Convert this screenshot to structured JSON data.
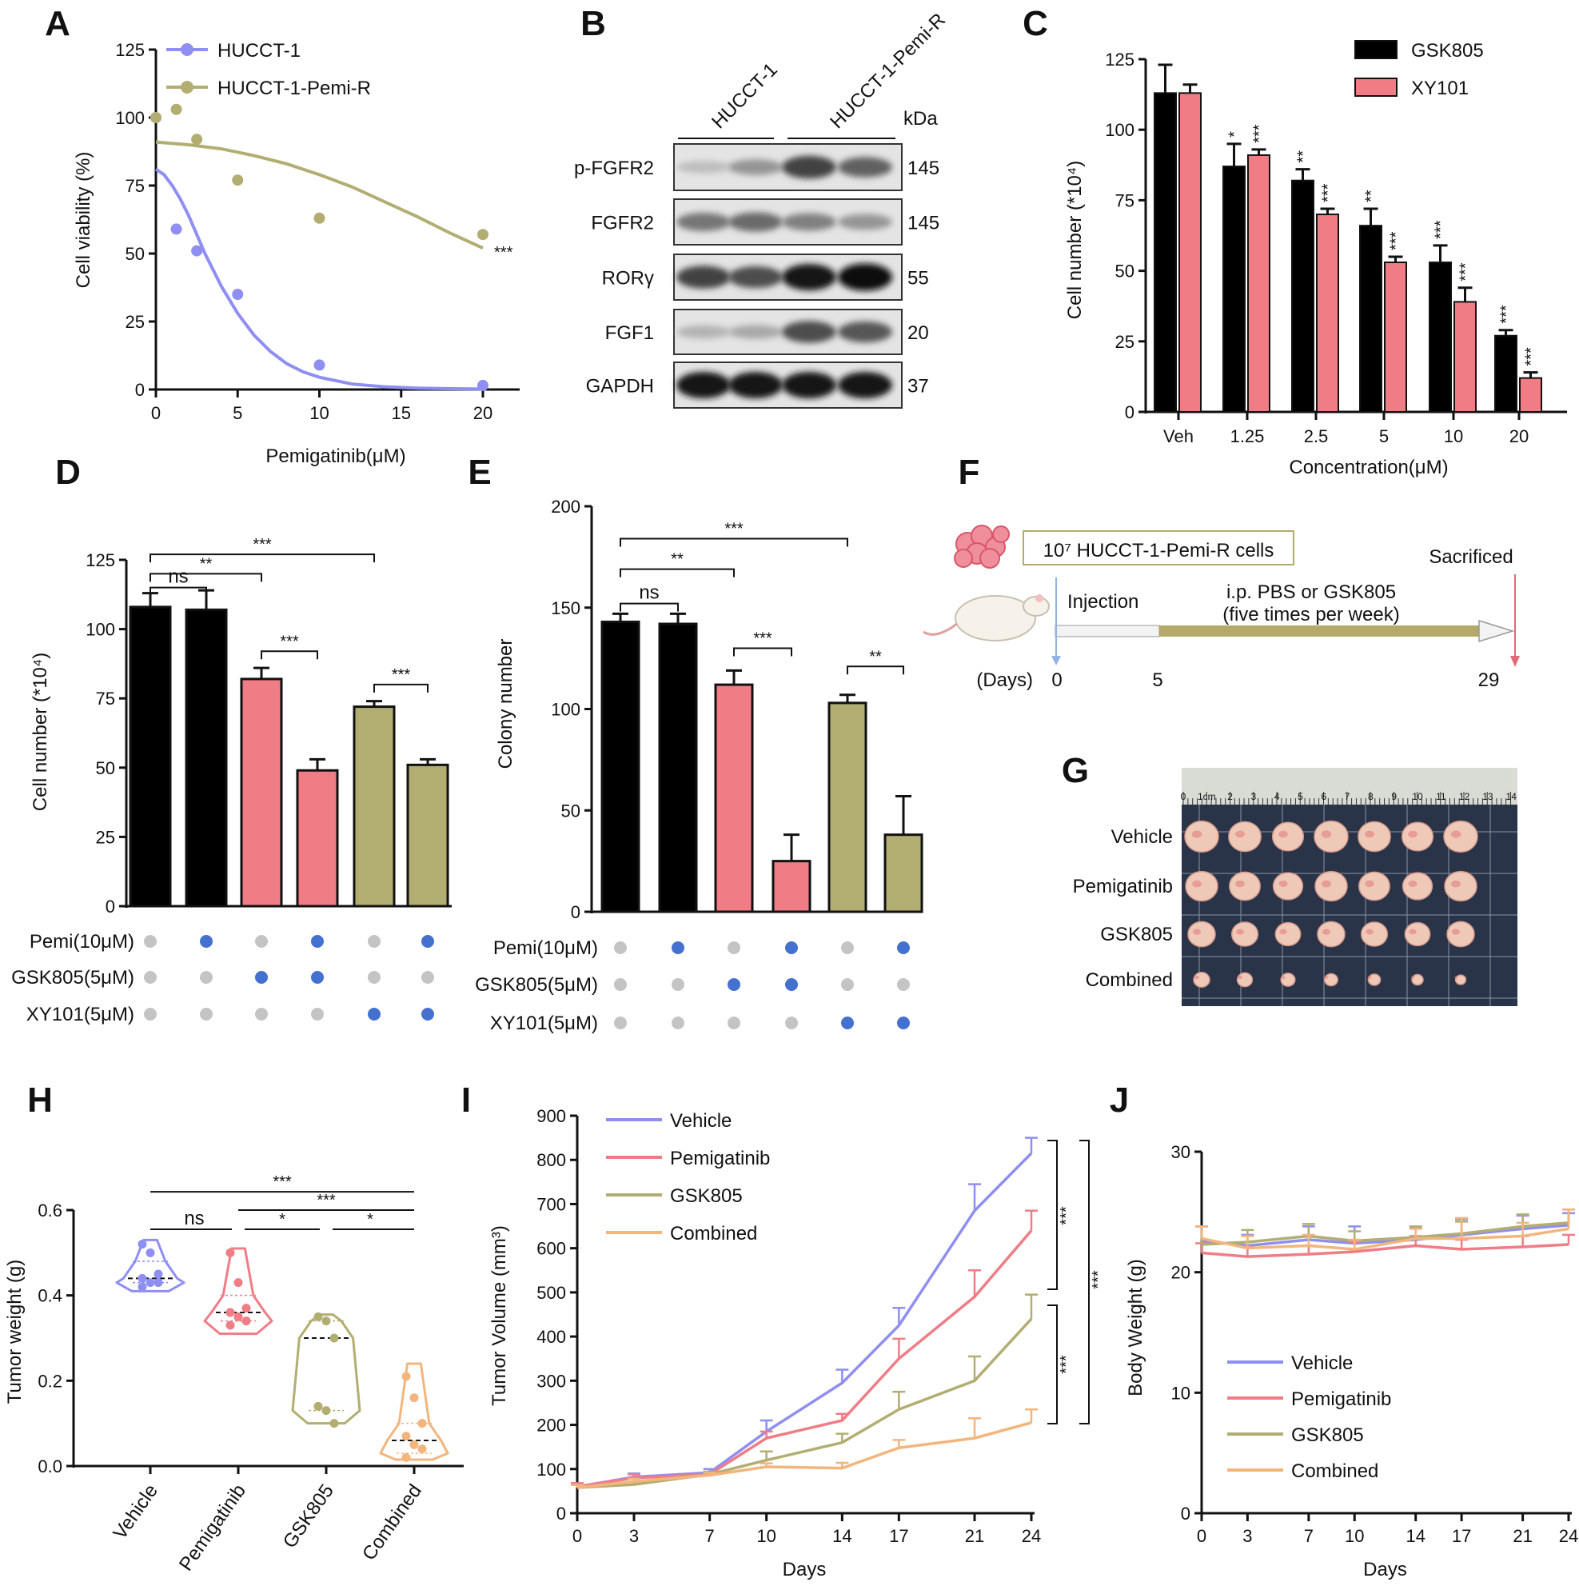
{
  "colors": {
    "purple": "#8f8ef2",
    "olive": "#b2ae72",
    "pink": "#f07c85",
    "orange": "#f3b57c",
    "black": "#000000",
    "blue": "#4470cf",
    "gray": "#c4c4c4",
    "arrow_line": "#b3aa6a",
    "inject": "#8fb3e6",
    "sacrifice": "#e06b76"
  },
  "panel_labels": [
    "A",
    "B",
    "C",
    "D",
    "E",
    "F",
    "G",
    "H",
    "I",
    "J"
  ],
  "chart_data": [
    {
      "panel": "A",
      "type": "scatter",
      "xlabel": "Pemigatinib(μM)",
      "ylabel": "Cell viability (%)",
      "xlim": [
        0,
        22
      ],
      "ylim": [
        0,
        125
      ],
      "xticks": [
        0,
        5,
        10,
        15,
        20
      ],
      "yticks": [
        0,
        25,
        50,
        75,
        100,
        125
      ],
      "series": [
        {
          "name": "HUCCT-1",
          "color": "purple",
          "points": [
            [
              0,
              100
            ],
            [
              1.25,
              59
            ],
            [
              2.5,
              51
            ],
            [
              5,
              35
            ],
            [
              10,
              9
            ],
            [
              20,
              1.5
            ]
          ],
          "fit": [
            [
              0,
              81
            ],
            [
              0.5,
              79
            ],
            [
              1,
              75
            ],
            [
              1.5,
              70
            ],
            [
              2,
              64
            ],
            [
              2.5,
              57
            ],
            [
              3,
              50
            ],
            [
              3.5,
              44
            ],
            [
              4,
              38
            ],
            [
              4.5,
              33
            ],
            [
              5,
              28
            ],
            [
              6,
              20
            ],
            [
              7,
              14
            ],
            [
              8,
              9.5
            ],
            [
              9,
              6.5
            ],
            [
              10,
              4.5
            ],
            [
              12,
              2
            ],
            [
              14,
              1
            ],
            [
              16,
              0.5
            ],
            [
              18,
              0.3
            ],
            [
              20,
              0.2
            ]
          ]
        },
        {
          "name": "HUCCT-1-Pemi-R",
          "color": "olive",
          "points": [
            [
              0,
              100
            ],
            [
              1.25,
              103
            ],
            [
              2.5,
              92
            ],
            [
              5,
              77
            ],
            [
              10,
              63
            ],
            [
              20,
              57
            ]
          ],
          "fit": [
            [
              0,
              91
            ],
            [
              2,
              90
            ],
            [
              4,
              88.5
            ],
            [
              6,
              86
            ],
            [
              8,
              83
            ],
            [
              10,
              79
            ],
            [
              12,
              74.5
            ],
            [
              14,
              69
            ],
            [
              16,
              63.5
            ],
            [
              18,
              57.5
            ],
            [
              20,
              52
            ]
          ]
        }
      ],
      "annotation": "***"
    },
    {
      "panel": "B",
      "type": "blot",
      "lanes": [
        "HUCCT-1",
        "HUCCT-1-Pemi-R"
      ],
      "unit": "kDa",
      "bands": [
        {
          "name": "p-FGFR2",
          "kda": "145",
          "intensity": [
            0.15,
            0.35,
            0.75,
            0.6
          ]
        },
        {
          "name": "FGFR2",
          "kda": "145",
          "intensity": [
            0.5,
            0.55,
            0.45,
            0.35
          ]
        },
        {
          "name": "RORγ",
          "kda": "55",
          "intensity": [
            0.75,
            0.7,
            0.95,
            1.0
          ]
        },
        {
          "name": "FGF1",
          "kda": "20",
          "intensity": [
            0.2,
            0.25,
            0.7,
            0.65
          ]
        },
        {
          "name": "GAPDH",
          "kda": "37",
          "intensity": [
            0.95,
            0.95,
            0.95,
            0.95
          ]
        }
      ]
    },
    {
      "panel": "C",
      "type": "bar",
      "categories": [
        "Veh",
        "1.25",
        "2.5",
        "5",
        "10",
        "20"
      ],
      "xlabel": "Concentration(μM)",
      "ylabel": "Cell number (*10⁴)",
      "ylim": [
        0,
        125
      ],
      "yticks": [
        0,
        25,
        50,
        75,
        100,
        125
      ],
      "series": [
        {
          "name": "GSK805",
          "color": "black",
          "values": [
            113,
            87,
            82,
            66,
            53,
            27
          ],
          "errors": [
            10,
            8,
            4,
            6,
            6,
            2
          ],
          "sig": [
            "",
            "*",
            "**",
            "**",
            "***",
            "***"
          ]
        },
        {
          "name": "XY101",
          "color": "pink",
          "values": [
            113,
            91,
            70,
            53,
            39,
            12
          ],
          "errors": [
            3,
            2,
            2,
            2,
            5,
            2
          ],
          "sig": [
            "",
            "***",
            "***",
            "***",
            "***",
            "***"
          ]
        }
      ]
    },
    {
      "panel": "D",
      "type": "bar",
      "ylabel": "Cell number (*10⁴)",
      "ylim": [
        0,
        125
      ],
      "yticks": [
        0,
        25,
        50,
        75,
        100,
        125
      ],
      "bars": [
        {
          "value": 108,
          "error": 5,
          "color": "black"
        },
        {
          "value": 107,
          "error": 7,
          "color": "black"
        },
        {
          "value": 82,
          "error": 4,
          "color": "pink"
        },
        {
          "value": 49,
          "error": 4,
          "color": "pink"
        },
        {
          "value": 72,
          "error": 2,
          "color": "olive"
        },
        {
          "value": 51,
          "error": 2,
          "color": "olive"
        }
      ],
      "brackets": [
        {
          "from": 0,
          "to": 1,
          "y": 115,
          "label": "ns"
        },
        {
          "from": 0,
          "to": 2,
          "y": 120,
          "label": "**"
        },
        {
          "from": 0,
          "to": 4,
          "y": 127,
          "label": "***"
        },
        {
          "from": 2,
          "to": 3,
          "y": 92,
          "label": "***"
        },
        {
          "from": 4,
          "to": 5,
          "y": 80,
          "label": "***"
        }
      ],
      "matrix": {
        "rows": [
          "Pemi(10μM)",
          "GSK805(5μM)",
          "XY101(5μM)"
        ],
        "on": [
          [
            0,
            1,
            0,
            1,
            0,
            1
          ],
          [
            0,
            0,
            1,
            1,
            0,
            0
          ],
          [
            0,
            0,
            0,
            0,
            1,
            1
          ]
        ]
      }
    },
    {
      "panel": "E",
      "type": "bar",
      "ylabel": "Colony number",
      "ylim": [
        0,
        200
      ],
      "yticks": [
        0,
        50,
        100,
        150,
        200
      ],
      "bars": [
        {
          "value": 143,
          "error": 4,
          "color": "black"
        },
        {
          "value": 142,
          "error": 5,
          "color": "black"
        },
        {
          "value": 112,
          "error": 7,
          "color": "pink"
        },
        {
          "value": 25,
          "error": 13,
          "color": "pink"
        },
        {
          "value": 103,
          "error": 4,
          "color": "olive"
        },
        {
          "value": 38,
          "error": 19,
          "color": "olive"
        }
      ],
      "brackets": [
        {
          "from": 0,
          "to": 1,
          "y": 152,
          "label": "ns"
        },
        {
          "from": 0,
          "to": 2,
          "y": 169,
          "label": "**"
        },
        {
          "from": 0,
          "to": 4,
          "y": 184,
          "label": "***"
        },
        {
          "from": 2,
          "to": 3,
          "y": 130,
          "label": "***"
        },
        {
          "from": 4,
          "to": 5,
          "y": 121,
          "label": "**"
        }
      ],
      "matrix": {
        "rows": [
          "Pemi(10μM)",
          "GSK805(5μM)",
          "XY101(5μM)"
        ],
        "on": [
          [
            0,
            1,
            0,
            1,
            0,
            1
          ],
          [
            0,
            0,
            1,
            1,
            0,
            0
          ],
          [
            0,
            0,
            0,
            0,
            1,
            1
          ]
        ]
      }
    },
    {
      "panel": "H",
      "type": "violin",
      "ylabel": "Tumor weight (g)",
      "ylim": [
        0,
        0.6
      ],
      "yticks": [
        0.0,
        0.2,
        0.4,
        0.6
      ],
      "yticklabels": [
        "0.0",
        "0.2",
        "0.4",
        "0.6"
      ],
      "groups": [
        {
          "name": "Vehicle",
          "color": "purple",
          "points": [
            0.52,
            0.5,
            0.45,
            0.44,
            0.43,
            0.43,
            0.42
          ],
          "median": 0.44,
          "q1": 0.43,
          "q3": 0.48,
          "min": 0.41,
          "max": 0.53
        },
        {
          "name": "Pemigatinib",
          "color": "pink",
          "points": [
            0.5,
            0.43,
            0.37,
            0.36,
            0.35,
            0.34,
            0.33
          ],
          "median": 0.36,
          "q1": 0.34,
          "q3": 0.4,
          "min": 0.31,
          "max": 0.51
        },
        {
          "name": "GSK805",
          "color": "olive",
          "points": [
            0.35,
            0.34,
            0.3,
            0.14,
            0.13,
            0.1
          ],
          "median": 0.3,
          "q1": 0.13,
          "q3": 0.34,
          "min": 0.1,
          "max": 0.355
        },
        {
          "name": "Combined",
          "color": "orange",
          "points": [
            0.21,
            0.16,
            0.1,
            0.07,
            0.05,
            0.04,
            0.02
          ],
          "median": 0.06,
          "q1": 0.03,
          "q3": 0.1,
          "min": 0.015,
          "max": 0.24
        }
      ],
      "brackets": [
        {
          "from": 0,
          "to": 1,
          "y": 0.555,
          "label": "ns"
        },
        {
          "from": 1,
          "to": 2,
          "y": 0.555,
          "label": "*"
        },
        {
          "from": 2,
          "to": 3,
          "y": 0.555,
          "label": "*"
        },
        {
          "from": 1,
          "to": 3,
          "y": 0.6,
          "label": "***"
        },
        {
          "from": 0,
          "to": 3,
          "y": 0.643,
          "label": "***"
        }
      ]
    },
    {
      "panel": "I",
      "type": "line",
      "xlabel": "Days",
      "ylabel": "Tumor Volume (mm³)",
      "x": [
        0,
        3,
        7,
        10,
        14,
        17,
        21,
        24
      ],
      "xlim": [
        0,
        24
      ],
      "ylim": [
        0,
        900
      ],
      "yticks": [
        0,
        100,
        200,
        300,
        400,
        500,
        600,
        700,
        800,
        900
      ],
      "series": [
        {
          "name": "Vehicle",
          "color": "purple",
          "values": [
            60,
            82,
            92,
            185,
            295,
            425,
            685,
            815
          ],
          "errors": [
            8,
            8,
            8,
            25,
            30,
            40,
            60,
            35
          ]
        },
        {
          "name": "Pemigatinib",
          "color": "pink",
          "values": [
            60,
            80,
            88,
            170,
            210,
            350,
            490,
            640
          ],
          "errors": [
            8,
            8,
            6,
            15,
            15,
            45,
            60,
            45
          ]
        },
        {
          "name": "GSK805",
          "color": "olive",
          "values": [
            58,
            65,
            88,
            120,
            160,
            235,
            300,
            440
          ],
          "errors": [
            6,
            6,
            6,
            20,
            20,
            40,
            55,
            55
          ]
        },
        {
          "name": "Combined",
          "color": "orange",
          "values": [
            58,
            72,
            86,
            105,
            102,
            148,
            170,
            205
          ],
          "errors": [
            6,
            6,
            6,
            8,
            12,
            18,
            45,
            30
          ]
        }
      ],
      "sig": [
        "***",
        "***",
        "***"
      ]
    },
    {
      "panel": "J",
      "type": "line",
      "xlabel": "Days",
      "ylabel": "Body Weight (g)",
      "x": [
        0,
        3,
        7,
        10,
        14,
        17,
        21,
        24
      ],
      "xlim": [
        0,
        24
      ],
      "ylim": [
        0,
        30
      ],
      "yticks": [
        0,
        10,
        20,
        30
      ],
      "series": [
        {
          "name": "Vehicle",
          "color": "purple",
          "values": [
            22.6,
            22.2,
            22.7,
            22.4,
            22.7,
            23.1,
            23.6,
            23.9
          ],
          "errors": [
            1.2,
            0.9,
            1.1,
            1.4,
            1.0,
            1.3,
            1.1,
            1.0
          ]
        },
        {
          "name": "Pemigatinib",
          "color": "pink",
          "values": [
            21.6,
            21.3,
            21.5,
            21.7,
            22.2,
            21.9,
            22.1,
            22.3
          ],
          "errors": [
            0.8,
            0.8,
            0.7,
            0.8,
            0.8,
            0.8,
            0.9,
            0.8
          ]
        },
        {
          "name": "GSK805",
          "color": "olive",
          "values": [
            22.3,
            22.5,
            23.0,
            22.6,
            22.9,
            23.2,
            23.8,
            24.1
          ],
          "errors": [
            1.5,
            1.0,
            1.0,
            0.8,
            0.9,
            1.0,
            1.0,
            1.1
          ]
        },
        {
          "name": "Combined",
          "color": "orange",
          "values": [
            22.8,
            22.0,
            22.2,
            21.9,
            22.8,
            22.8,
            23.0,
            23.6
          ],
          "errors": [
            1.0,
            1.0,
            0.9,
            0.8,
            0.8,
            1.7,
            1.1,
            1.6
          ]
        }
      ]
    }
  ],
  "panel_f": {
    "cells_label": "10⁷ HUCCT-1-Pemi-R cells",
    "sacrificed": "Sacrificed",
    "injection": "Injection",
    "treatment_line1": "i.p. PBS or GSK805",
    "treatment_line2": "(five times per week)",
    "days_label": "(Days)",
    "day_ticks": [
      "0",
      "5",
      "29"
    ]
  },
  "panel_g": {
    "rows": [
      "Vehicle",
      "Pemigatinib",
      "GSK805",
      "Combined"
    ],
    "ruler_ticks": [
      "0",
      "1cm",
      "2",
      "3",
      "4",
      "5",
      "6",
      "7",
      "8",
      "9",
      "10",
      "11",
      "12",
      "13",
      "14"
    ],
    "tumor_counts": [
      7,
      7,
      7,
      7
    ]
  }
}
